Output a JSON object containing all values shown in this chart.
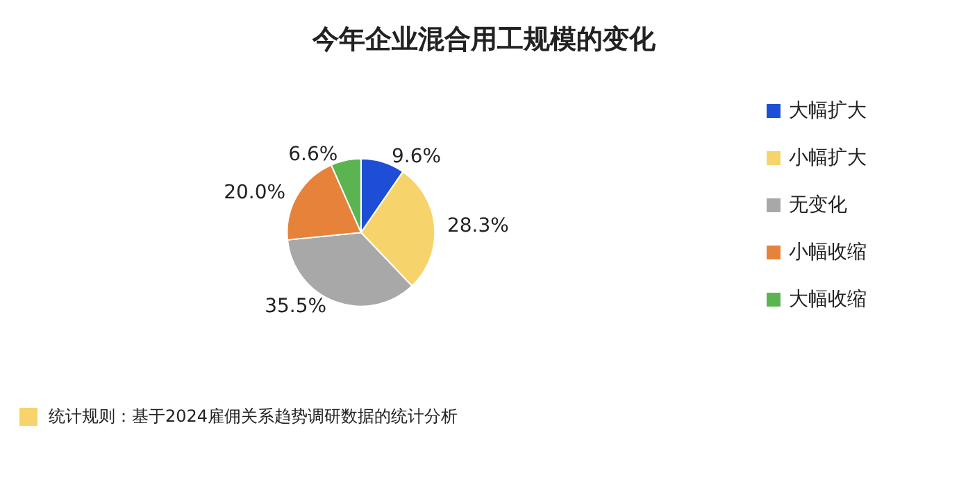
{
  "chart_data": {
    "type": "pie",
    "title": "今年企业混合用工规模的变化",
    "categories": [
      "大幅扩大",
      "小幅扩大",
      "无变化",
      "小幅收缩",
      "大幅收缩"
    ],
    "values": [
      9.6,
      28.3,
      35.5,
      20.0,
      6.6
    ],
    "colors": [
      "#1f4ed6",
      "#f7d46b",
      "#a8a8a8",
      "#e6823a",
      "#5bb450"
    ],
    "value_labels": [
      "9.6%",
      "28.3%",
      "35.5%",
      "20.0%",
      "6.6%"
    ],
    "legend": "right",
    "annotations": [
      "统计规则：基于2024雇佣关系趋势调研数据的统计分析"
    ]
  }
}
